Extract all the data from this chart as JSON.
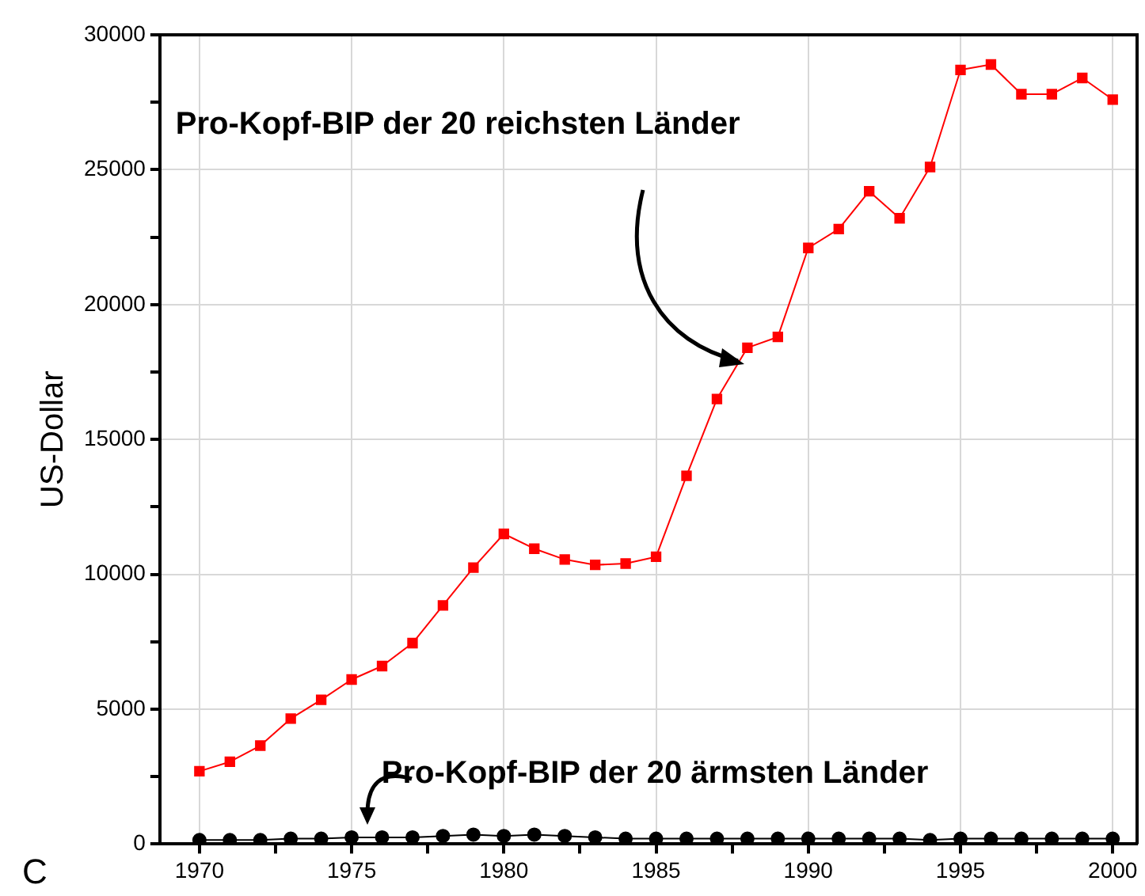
{
  "chart_data": {
    "type": "line",
    "ylabel": "US-Dollar",
    "x": [
      1970,
      1971,
      1972,
      1973,
      1974,
      1975,
      1976,
      1977,
      1978,
      1979,
      1980,
      1981,
      1982,
      1983,
      1984,
      1985,
      1986,
      1987,
      1988,
      1989,
      1990,
      1991,
      1992,
      1993,
      1994,
      1995,
      1996,
      1997,
      1998,
      1999,
      2000
    ],
    "series": [
      {
        "color": "#ff0000",
        "marker": "square",
        "values": [
          2700,
          3050,
          3650,
          4650,
          5350,
          6100,
          6600,
          7450,
          8850,
          10250,
          11500,
          10950,
          10550,
          10350,
          10400,
          10650,
          13650,
          16500,
          18400,
          18800,
          22100,
          22800,
          24200,
          23200,
          25100,
          28700,
          28900,
          27800,
          27800,
          28400,
          27600
        ]
      },
      {
        "color": "#000000",
        "marker": "circle",
        "values": [
          150,
          150,
          150,
          200,
          200,
          250,
          250,
          250,
          300,
          350,
          300,
          350,
          300,
          250,
          200,
          200,
          200,
          200,
          200,
          200,
          200,
          200,
          200,
          200,
          150,
          200,
          200,
          200,
          200,
          200,
          200
        ]
      }
    ],
    "xlim": [
      1968.7,
      2000.8
    ],
    "xticks": [
      1970,
      {
        "value": 1972.5,
        "label": null
      },
      1975,
      {
        "value": 1977.5,
        "label": null
      },
      1980,
      {
        "value": 1982.5,
        "label": null
      },
      1985,
      {
        "value": 1987.5,
        "label": null
      },
      1990,
      {
        "value": 1992.5,
        "label": null
      },
      1995,
      {
        "value": 1997.5,
        "label": null
      },
      2000
    ],
    "ylim": [
      0,
      30000
    ],
    "yticks": [
      0,
      {
        "value": 2500,
        "label": null
      },
      5000,
      {
        "value": 7500,
        "label": null
      },
      10000,
      {
        "value": 12500,
        "label": null
      },
      15000,
      {
        "value": 17500,
        "label": null
      },
      20000,
      {
        "value": 22500,
        "label": null
      },
      25000,
      {
        "value": 27500,
        "label": null
      },
      30000
    ],
    "grid": true,
    "legend": false,
    "annotations": [
      "Pro-Kopf-BIP der 20 reichsten Länder",
      "Pro-Kopf-BIP der 20 ärmsten Länder",
      "C"
    ]
  }
}
